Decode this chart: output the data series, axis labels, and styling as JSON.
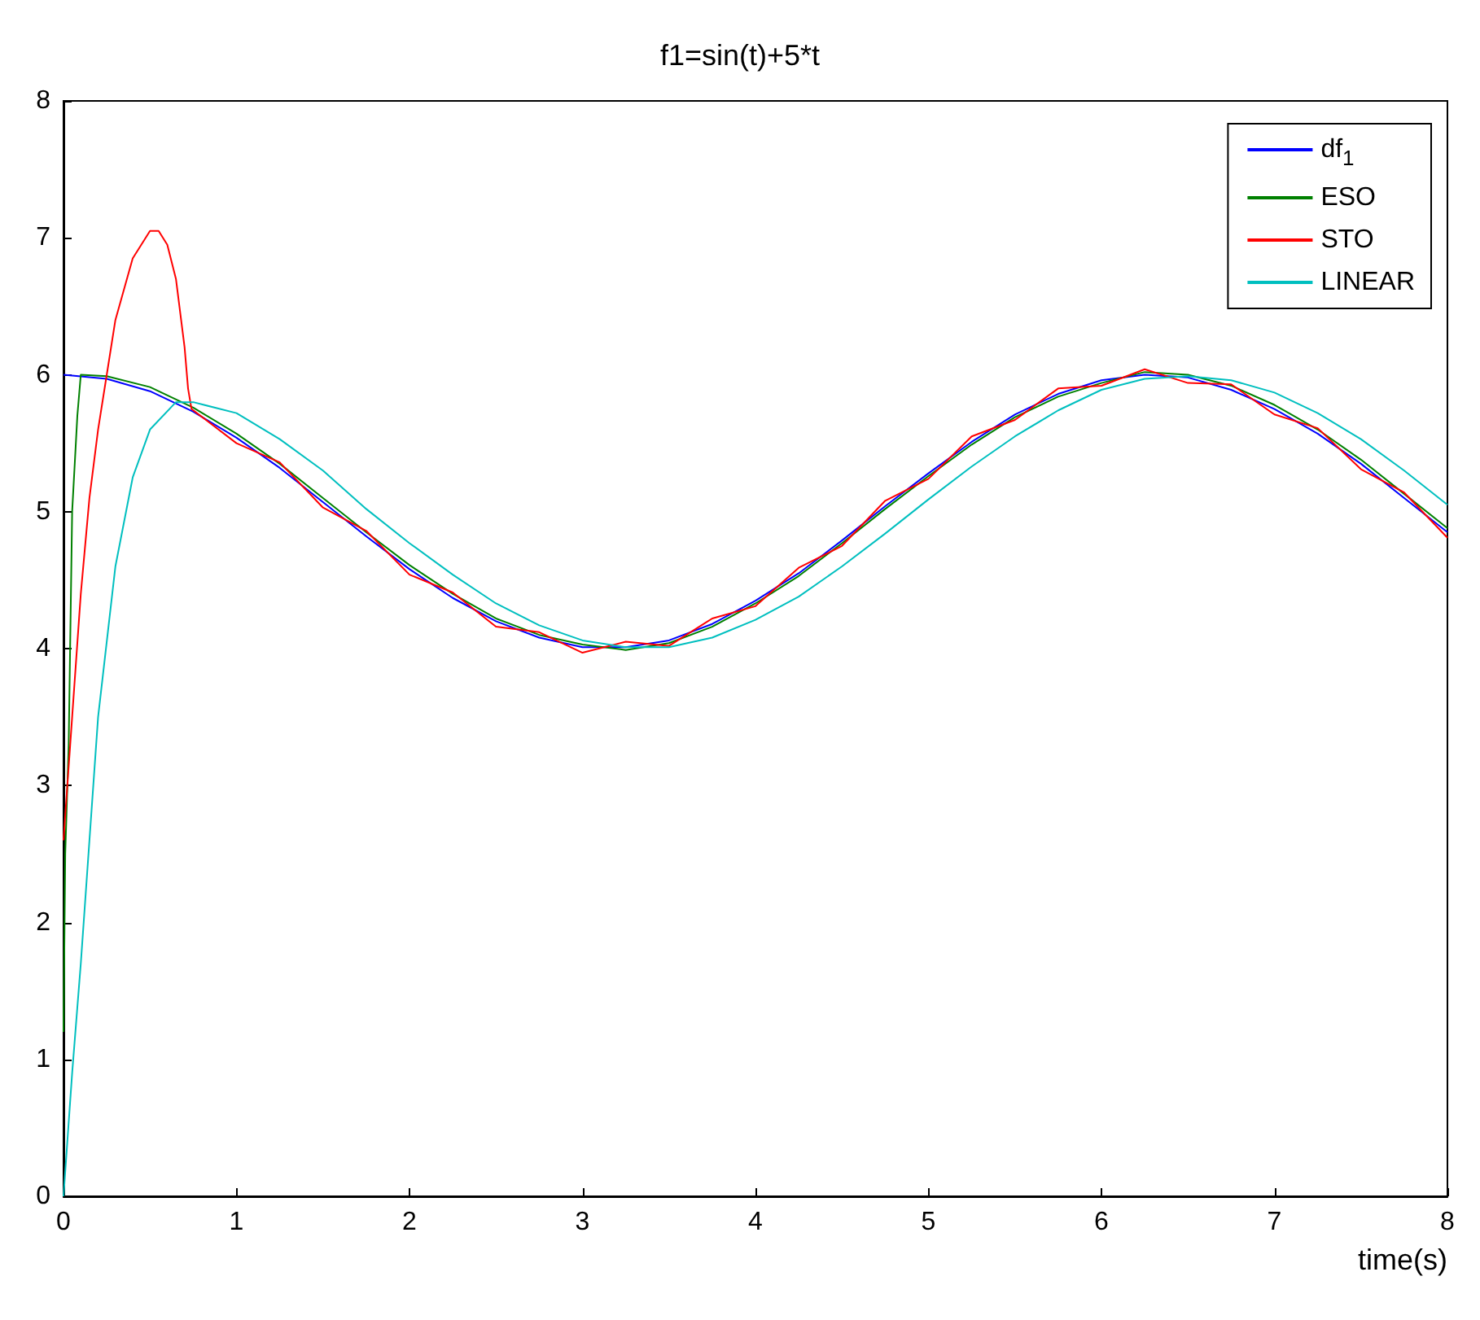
{
  "chart_data": {
    "type": "line",
    "title": "f1=sin(t)+5*t",
    "xlabel": "time(s)",
    "xlim": [
      0,
      8
    ],
    "xticks": [
      0,
      1,
      2,
      3,
      4,
      5,
      6,
      7,
      8
    ],
    "ylim": [
      0,
      8
    ],
    "yticks": [
      0,
      1,
      2,
      3,
      4,
      5,
      6,
      7,
      8
    ],
    "grid": false,
    "legend": "top right",
    "marker": "none",
    "line_style": "solid",
    "series": [
      {
        "name": "df$_{1}$",
        "color": "#0000ff",
        "x": [
          0,
          0.25,
          0.5,
          0.75,
          1,
          1.25,
          1.5,
          1.75,
          2,
          2.25,
          2.5,
          2.75,
          3,
          3.25,
          3.5,
          3.75,
          4,
          4.25,
          4.5,
          4.75,
          5,
          5.25,
          5.5,
          5.75,
          6,
          6.25,
          6.5,
          6.75,
          7,
          7.25,
          7.5,
          7.75,
          8
        ],
        "values": [
          6,
          5.97,
          5.88,
          5.73,
          5.54,
          5.32,
          5.07,
          4.82,
          4.58,
          4.37,
          4.2,
          4.08,
          4.01,
          4.01,
          4.06,
          4.18,
          4.35,
          4.55,
          4.79,
          5.04,
          5.28,
          5.51,
          5.71,
          5.86,
          5.96,
          6,
          5.98,
          5.89,
          5.75,
          5.57,
          5.35,
          5.1,
          4.85
        ]
      },
      {
        "name": "ESO",
        "color": "#008000",
        "x": [
          0,
          0.01,
          0.03,
          0.05,
          0.08,
          0.1,
          0.25,
          0.5,
          0.75,
          1,
          1.25,
          1.5,
          1.75,
          2,
          2.25,
          2.5,
          2.75,
          3,
          3.25,
          3.5,
          3.75,
          4,
          4.25,
          4.5,
          4.75,
          5,
          5.25,
          5.5,
          5.75,
          6,
          6.25,
          6.5,
          6.75,
          7,
          7.25,
          7.5,
          7.75,
          8
        ],
        "values": [
          1.2,
          2.5,
          3.3,
          5,
          5.7,
          6,
          5.99,
          5.91,
          5.76,
          5.57,
          5.35,
          5.1,
          4.85,
          4.61,
          4.4,
          4.22,
          4.1,
          4.03,
          3.99,
          4.04,
          4.16,
          4.33,
          4.53,
          4.77,
          5.02,
          5.26,
          5.49,
          5.69,
          5.84,
          5.94,
          6.02,
          6,
          5.92,
          5.78,
          5.6,
          5.38,
          5.13,
          4.88
        ]
      },
      {
        "name": "STO",
        "color": "#ff0000",
        "x": [
          0,
          0.05,
          0.1,
          0.15,
          0.2,
          0.25,
          0.3,
          0.4,
          0.5,
          0.55,
          0.6,
          0.65,
          0.7,
          0.72,
          0.74,
          1,
          1.25,
          1.5,
          1.75,
          2,
          2.25,
          2.5,
          2.75,
          3,
          3.25,
          3.5,
          3.75,
          4,
          4.25,
          4.5,
          4.75,
          5,
          5.25,
          5.5,
          5.75,
          6,
          6.25,
          6.5,
          6.75,
          7,
          7.25,
          7.5,
          7.75,
          8
        ],
        "values": [
          2.6,
          3.5,
          4.4,
          5.1,
          5.6,
          6,
          6.4,
          6.85,
          7.05,
          7.05,
          6.95,
          6.7,
          6.2,
          5.9,
          5.75,
          5.5,
          5.36,
          5.03,
          4.86,
          4.54,
          4.41,
          4.16,
          4.12,
          3.97,
          4.05,
          4.02,
          4.22,
          4.31,
          4.59,
          4.75,
          5.08,
          5.24,
          5.55,
          5.67,
          5.9,
          5.92,
          6.04,
          5.94,
          5.93,
          5.71,
          5.61,
          5.31,
          5.14,
          4.81
        ]
      },
      {
        "name": "LINEAR",
        "color": "#00bfbf",
        "x": [
          0,
          0.05,
          0.1,
          0.15,
          0.2,
          0.3,
          0.4,
          0.5,
          0.65,
          0.75,
          1,
          1.25,
          1.5,
          1.75,
          2,
          2.25,
          2.5,
          2.75,
          3,
          3.25,
          3.5,
          3.75,
          4,
          4.25,
          4.5,
          4.75,
          5,
          5.25,
          5.5,
          5.75,
          6,
          6.25,
          6.5,
          6.75,
          7,
          7.25,
          7.5,
          7.75,
          8
        ],
        "values": [
          0,
          0.9,
          1.7,
          2.6,
          3.5,
          4.6,
          5.25,
          5.6,
          5.8,
          5.8,
          5.72,
          5.53,
          5.3,
          5.02,
          4.77,
          4.54,
          4.33,
          4.17,
          4.06,
          4.01,
          4.01,
          4.08,
          4.21,
          4.38,
          4.6,
          4.84,
          5.09,
          5.33,
          5.55,
          5.74,
          5.89,
          5.97,
          5.99,
          5.96,
          5.87,
          5.72,
          5.53,
          5.3,
          5.05
        ]
      }
    ]
  }
}
